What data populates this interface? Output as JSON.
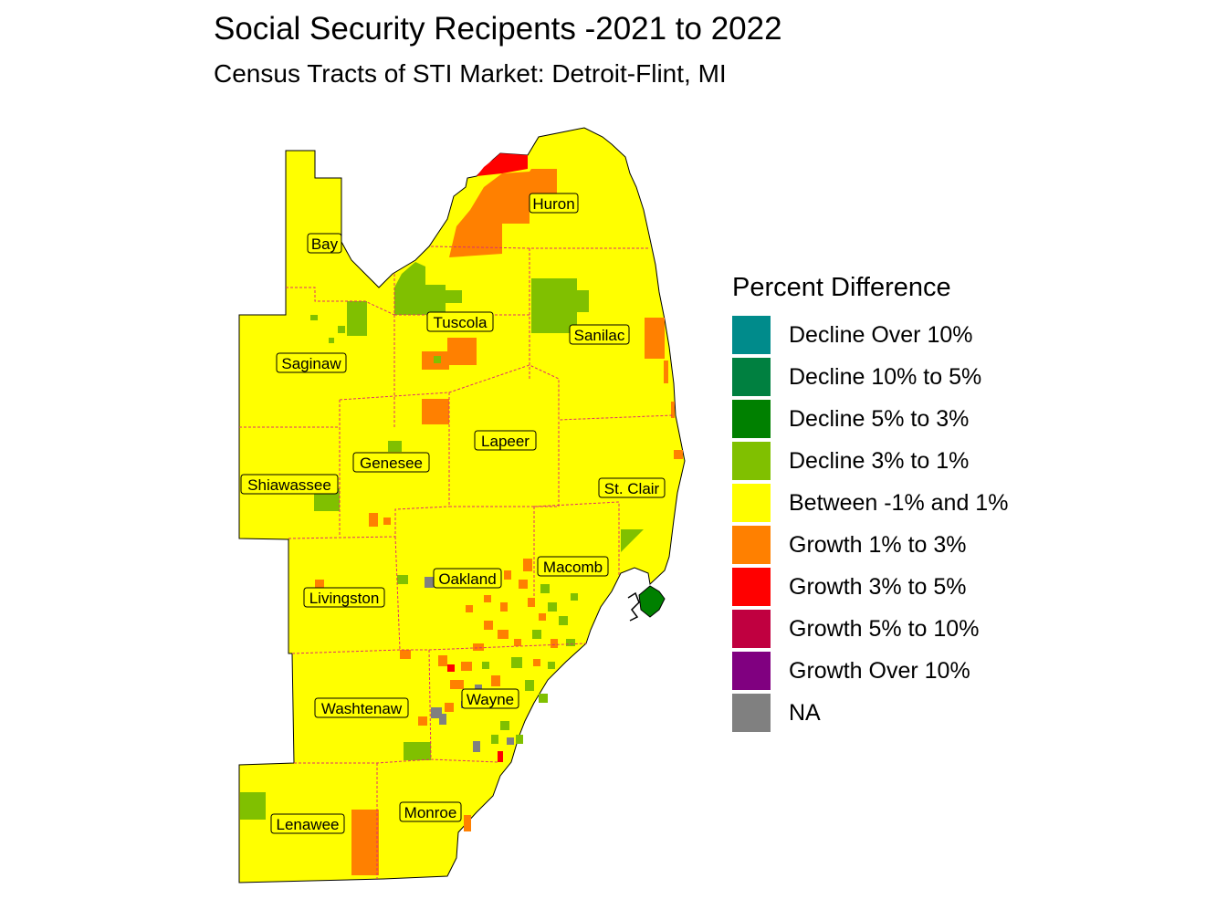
{
  "title": "Social Security Recipents -2021 to 2022",
  "subtitle": "Census Tracts of STI Market: Detroit-Flint, MI",
  "legend": {
    "title": "Percent Difference",
    "items": [
      {
        "label": "Decline Over 10%",
        "color": "#008B8B"
      },
      {
        "label": "Decline 10% to 5%",
        "color": "#008040"
      },
      {
        "label": "Decline 5% to 3%",
        "color": "#008000"
      },
      {
        "label": "Decline 3% to 1%",
        "color": "#80C000"
      },
      {
        "label": "Between -1% and 1%",
        "color": "#FFFF00"
      },
      {
        "label": "Growth 1% to 3%",
        "color": "#FF8000"
      },
      {
        "label": "Growth 3% to 5%",
        "color": "#FF0000"
      },
      {
        "label": "Growth 5% to 10%",
        "color": "#C00040"
      },
      {
        "label": "Growth Over 10%",
        "color": "#800080"
      },
      {
        "label": "NA",
        "color": "#808080"
      }
    ]
  },
  "counties": [
    "Bay",
    "Huron",
    "Tuscola",
    "Sanilac",
    "Saginaw",
    "Lapeer",
    "Genesee",
    "Shiawassee",
    "St. Clair",
    "Oakland",
    "Macomb",
    "Livingston",
    "Washtenaw",
    "Wayne",
    "Lenawee",
    "Monroe"
  ]
}
